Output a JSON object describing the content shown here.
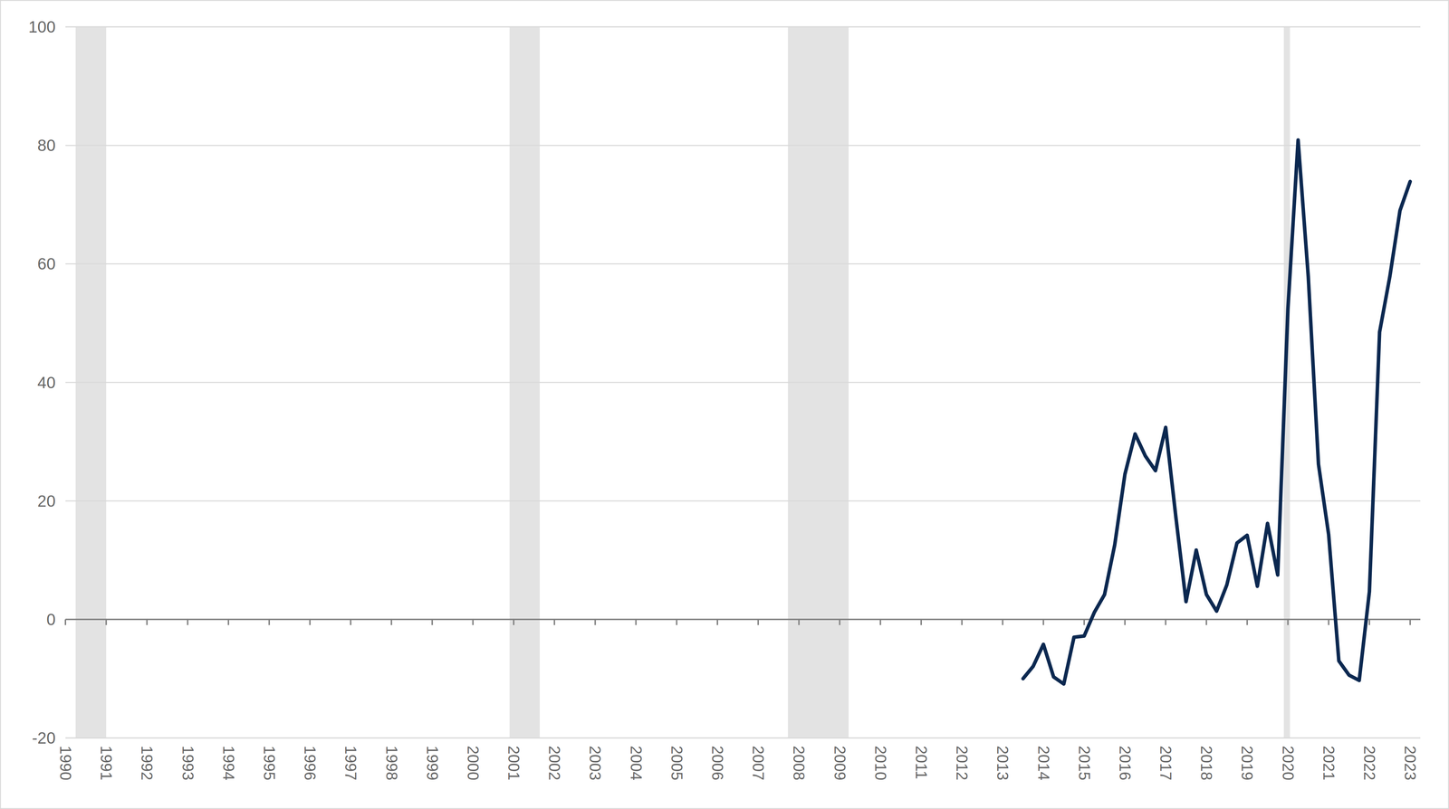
{
  "chart_data": {
    "type": "line",
    "x": [
      2013.5,
      2013.75,
      2014,
      2014.25,
      2014.5,
      2014.75,
      2015,
      2015.25,
      2015.5,
      2015.75,
      2016,
      2016.25,
      2016.5,
      2016.75,
      2017,
      2017.25,
      2017.5,
      2017.75,
      2018,
      2018.25,
      2018.5,
      2018.75,
      2019,
      2019.25,
      2019.5,
      2019.75,
      2020,
      2020.25,
      2020.5,
      2020.75,
      2021,
      2021.25,
      2021.5,
      2021.75,
      2022,
      2022.25,
      2022.5,
      2022.75,
      2023
    ],
    "values": [
      -10.0,
      -7.9,
      -4.2,
      -9.7,
      -10.9,
      -3.0,
      -2.8,
      1.2,
      4.2,
      12.6,
      24.5,
      31.3,
      27.6,
      25.1,
      32.4,
      17.3,
      3.0,
      11.7,
      4.2,
      1.4,
      5.8,
      12.9,
      14.2,
      5.6,
      16.2,
      7.5,
      52.4,
      80.9,
      57.8,
      26.2,
      14.3,
      -7.0,
      -9.4,
      -10.3,
      4.7,
      48.5,
      57.8,
      69.0,
      73.9
    ],
    "color": "#0b2850",
    "recessions": [
      [
        1990.25,
        1991.0
      ],
      [
        2000.9,
        2001.64
      ],
      [
        2007.73,
        2009.22
      ],
      [
        2019.9,
        2020.05
      ]
    ],
    "xlim": [
      1990,
      2023.25
    ],
    "xticks": [
      1990,
      1991,
      1992,
      1993,
      1994,
      1995,
      1996,
      1997,
      1998,
      1999,
      2000,
      2001,
      2002,
      2003,
      2004,
      2005,
      2006,
      2007,
      2008,
      2009,
      2010,
      2011,
      2012,
      2013,
      2014,
      2015,
      2016,
      2017,
      2018,
      2019,
      2020,
      2021,
      2022,
      2023
    ],
    "ylim": [
      -20,
      100
    ],
    "yticks": [
      -20,
      0,
      20,
      40,
      60,
      80,
      100
    ],
    "grid": true
  }
}
